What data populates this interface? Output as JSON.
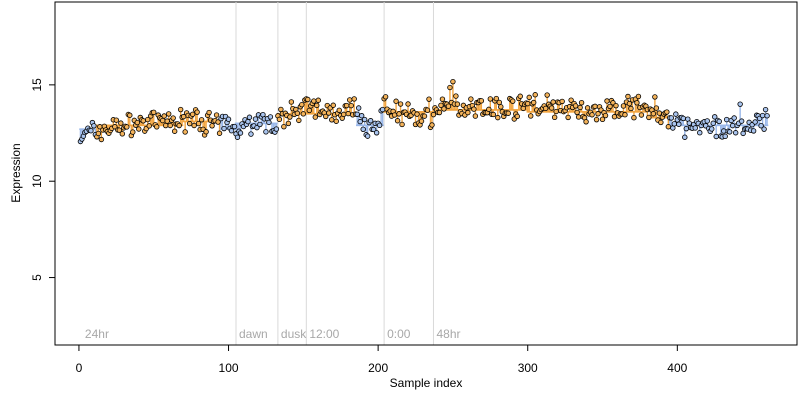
{
  "chart_data": {
    "type": "scatter",
    "title": "",
    "xlabel": "Sample index",
    "ylabel": "Expression",
    "xlim": [
      -16,
      480
    ],
    "ylim": [
      1.5,
      19.3
    ],
    "xticks": [
      0,
      100,
      200,
      300,
      400
    ],
    "xtick_labels": [
      "0",
      "100",
      "200",
      "300",
      "400"
    ],
    "yticks": [
      5,
      10,
      15
    ],
    "ytick_labels": [
      "5",
      "10",
      "15"
    ],
    "grid": false,
    "legend": "none",
    "n_points": 460,
    "colors": {
      "point_outline": "#000000",
      "blue_fill": "#a9c4ee",
      "orange_fill": "#f4b35a",
      "blue_bar": "#9ab8ea",
      "orange_bar": "#f2a541",
      "phase_line": "#d9d9d9",
      "phase_text": "#a8a8a8",
      "axis": "#000000"
    },
    "phase_markers": [
      {
        "x": 105,
        "label": "dawn"
      },
      {
        "x": 133,
        "label": "dusk"
      },
      {
        "x": 152,
        "label": "12:00"
      },
      {
        "x": 204,
        "label": "0:00"
      },
      {
        "x": 237,
        "label": "48hr"
      }
    ],
    "start_label": "24hr",
    "level_segments": [
      {
        "x_range": [
          1,
          12
        ],
        "level": 12.7,
        "color": "blue"
      },
      {
        "x_range": [
          12,
          70
        ],
        "level": 12.9,
        "color": "orange"
      },
      {
        "x_range": [
          70,
          95
        ],
        "level": 13.1,
        "color": "orange"
      },
      {
        "x_range": [
          95,
          105
        ],
        "level": 12.7,
        "color": "blue"
      },
      {
        "x_range": [
          105,
          133
        ],
        "level": 13.0,
        "color": "blue"
      },
      {
        "x_range": [
          133,
          152
        ],
        "level": 13.5,
        "color": "orange"
      },
      {
        "x_range": [
          152,
          186
        ],
        "level": 13.5,
        "color": "orange"
      },
      {
        "x_range": [
          186,
          204
        ],
        "level": 12.9,
        "color": "blue"
      },
      {
        "x_range": [
          204,
          237
        ],
        "level": 13.6,
        "color": "orange"
      },
      {
        "x_range": [
          237,
          300
        ],
        "level": 13.7,
        "color": "orange"
      },
      {
        "x_range": [
          300,
          380
        ],
        "level": 13.6,
        "color": "orange"
      },
      {
        "x_range": [
          380,
          395
        ],
        "level": 13.3,
        "color": "orange"
      },
      {
        "x_range": [
          395,
          461
        ],
        "level": 12.9,
        "color": "blue"
      }
    ],
    "trend": {
      "x": [
        1,
        10,
        30,
        60,
        80,
        95,
        105,
        120,
        133,
        140,
        150,
        160,
        175,
        183,
        188,
        192,
        198,
        204,
        215,
        230,
        236,
        245,
        265,
        285,
        305,
        320,
        340,
        360,
        375,
        385,
        395,
        405,
        420,
        440,
        461
      ],
      "y": [
        12.3,
        12.6,
        12.9,
        13.1,
        13.2,
        12.8,
        12.9,
        13.1,
        13.0,
        13.6,
        13.8,
        13.7,
        13.6,
        13.9,
        13.4,
        12.6,
        12.8,
        13.9,
        13.6,
        13.3,
        13.4,
        13.8,
        13.9,
        13.8,
        14.0,
        13.8,
        13.6,
        13.7,
        13.9,
        13.5,
        13.0,
        12.9,
        12.7,
        12.9,
        12.9
      ]
    }
  }
}
